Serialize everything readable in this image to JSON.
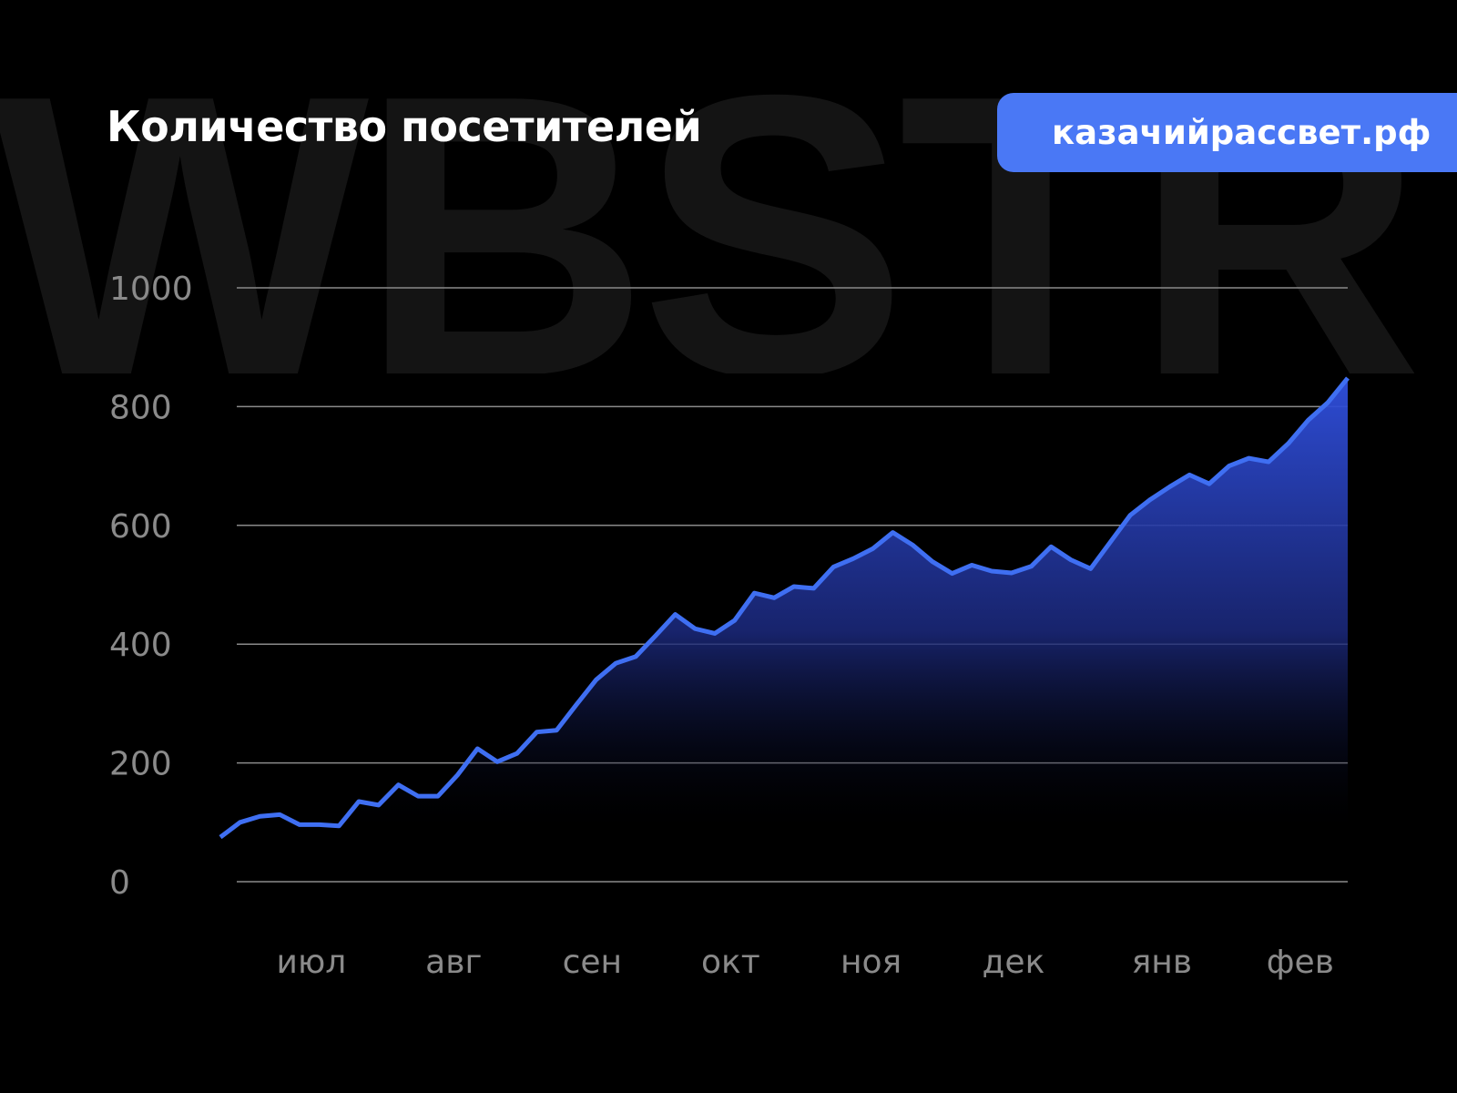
{
  "watermark": "WBSTR",
  "header": {
    "title": "Количество посетителей",
    "badge": "казачийрассвет.рф"
  },
  "colors": {
    "line": "#3f6ff2",
    "fill_top": "#2f4fd8",
    "background": "#000000",
    "badge": "#4a78f5",
    "grid": "#8a8a8a"
  },
  "chart_data": {
    "type": "area",
    "title": "Количество посетителей",
    "xlabel": "",
    "ylabel": "",
    "ylim": [
      0,
      1000
    ],
    "yticks": [
      0,
      200,
      400,
      600,
      800,
      1000
    ],
    "grid": true,
    "values": [
      75,
      100,
      110,
      113,
      96,
      96,
      94,
      135,
      129,
      163,
      144,
      144,
      180,
      224,
      202,
      216,
      252,
      255,
      298,
      340,
      368,
      379,
      414,
      450,
      426,
      418,
      440,
      486,
      478,
      497,
      494,
      530,
      544,
      561,
      588,
      567,
      539,
      519,
      533,
      523,
      520,
      531,
      564,
      542,
      527,
      572,
      617,
      643,
      665,
      685,
      670,
      700,
      713,
      707,
      738,
      777,
      807,
      848
    ],
    "xticks": [
      {
        "label": "июл",
        "index": 4.6
      },
      {
        "label": "авг",
        "index": 11.8
      },
      {
        "label": "сен",
        "index": 18.8
      },
      {
        "label": "окт",
        "index": 25.8
      },
      {
        "label": "ноя",
        "index": 32.9
      },
      {
        "label": "дек",
        "index": 40.1
      },
      {
        "label": "янв",
        "index": 47.6
      },
      {
        "label": "фев",
        "index": 54.6
      }
    ]
  }
}
